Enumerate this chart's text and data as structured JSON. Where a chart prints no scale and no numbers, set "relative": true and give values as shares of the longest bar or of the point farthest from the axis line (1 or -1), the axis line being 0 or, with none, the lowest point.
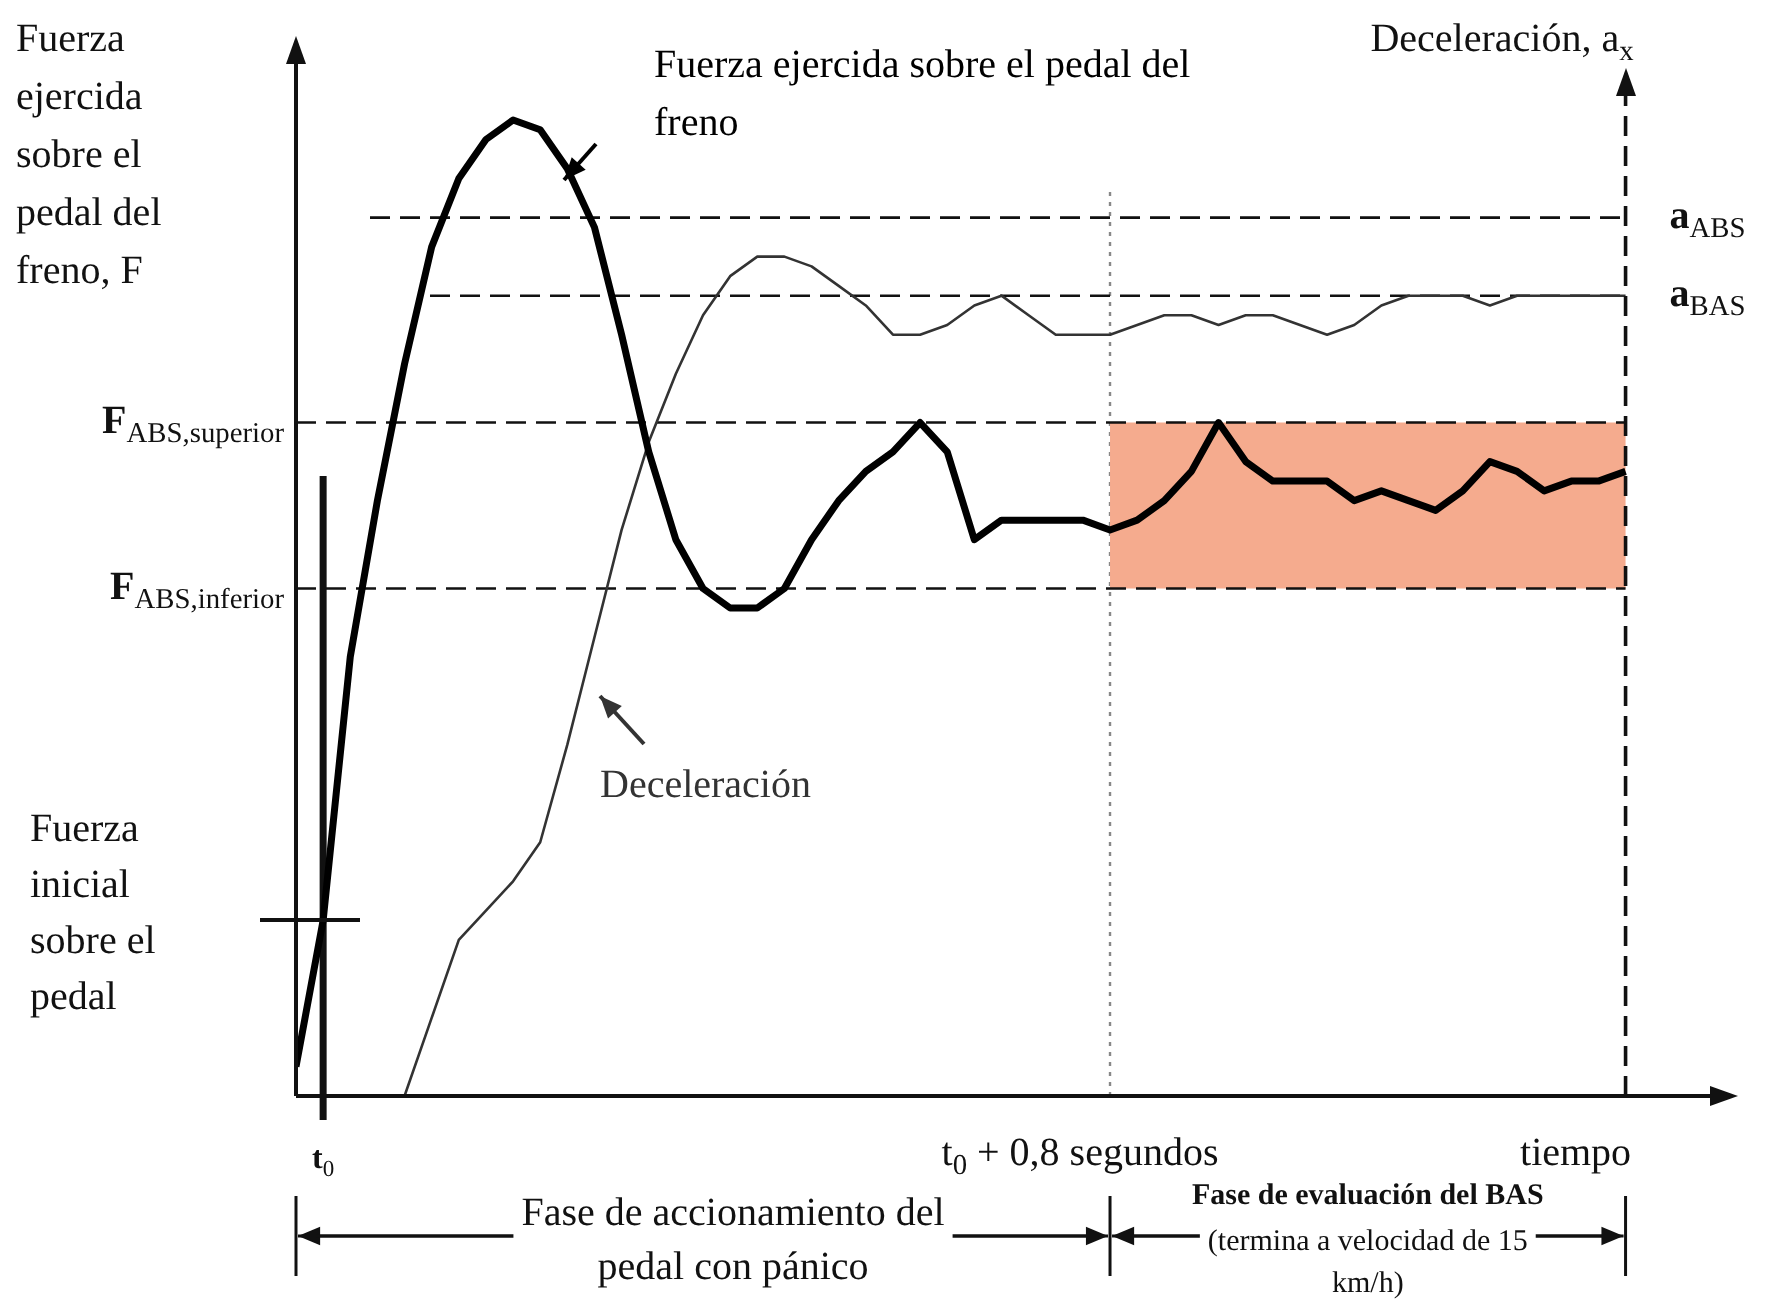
{
  "chart_data": {
    "type": "line",
    "relative": true,
    "marker": "none",
    "ylabel": "Fuerza ejercida sobre el pedal del freno, F",
    "y2label": "Deceleración, a$_{x}$",
    "xlabel": "tiempo",
    "categories": [
      null,
      null,
      null,
      null,
      null,
      null,
      null,
      null,
      null,
      null,
      null,
      null,
      null,
      null,
      null,
      null,
      null,
      null,
      null,
      null,
      null,
      null,
      null,
      null,
      null,
      null,
      null,
      null,
      null,
      null,
      null,
      null,
      null,
      null,
      null,
      null,
      null,
      null,
      null,
      null,
      null,
      null,
      null,
      null,
      null,
      null,
      null,
      null,
      null,
      null
    ],
    "series": [
      {
        "name": "Fuerza ejercida sobre el pedal del freno",
        "color": "#000000",
        "values": [
          0.03,
          0.18,
          0.45,
          0.61,
          0.75,
          0.87,
          0.94,
          0.98,
          1,
          0.99,
          0.95,
          0.89,
          0.78,
          0.66,
          0.57,
          0.52,
          0.5,
          0.5,
          0.52,
          0.57,
          0.61,
          0.64,
          0.66,
          0.69,
          0.66,
          0.57,
          0.59,
          0.59,
          0.59,
          0.59,
          0.58,
          0.59,
          0.61,
          0.64,
          0.69,
          0.65,
          0.63,
          0.63,
          0.63,
          0.61,
          0.62,
          0.61,
          0.6,
          0.62,
          0.65,
          0.64,
          0.62,
          0.63,
          0.63,
          0.64
        ]
      },
      {
        "name": "Deceleración",
        "color": "#333333",
        "values": [
          null,
          null,
          null,
          null,
          0,
          0.08,
          0.16,
          0.19,
          0.22,
          0.26,
          0.36,
          0.47,
          0.58,
          0.67,
          0.74,
          0.8,
          0.84,
          0.86,
          0.86,
          0.85,
          0.83,
          0.81,
          0.78,
          0.78,
          0.79,
          0.81,
          0.82,
          0.8,
          0.78,
          0.78,
          0.78,
          0.79,
          0.8,
          0.8,
          0.79,
          0.8,
          0.8,
          0.79,
          0.78,
          0.79,
          0.81,
          0.82,
          0.82,
          0.82,
          0.81,
          0.82,
          0.82,
          0.82,
          0.82,
          0.82
        ]
      }
    ],
    "ref_lines": [
      {
        "axis": "y",
        "value": 0.9,
        "label": "a$_{ABS}$",
        "line_style": "dashed"
      },
      {
        "axis": "y",
        "value": 0.82,
        "label": "a$_{BAS}$",
        "line_style": "dashed"
      },
      {
        "axis": "y",
        "value": 0.69,
        "label": "F$_{ABS,superior}$",
        "line_style": "dashed"
      },
      {
        "axis": "y",
        "value": 0.52,
        "label": "F$_{ABS,inferior}$",
        "line_style": "dashed"
      }
    ],
    "bands": [
      {
        "axis": "y",
        "from": 0.52,
        "to": 0.69,
        "color": "#f5ab8e"
      }
    ],
    "annotations": [
      "Fase de accionamiento del pedal con pánico",
      "Fase de evaluación del BAS",
      "(termina a velocidad de 15 km/h)",
      "t$_{0}$",
      "t$_{0}$ + 0,8 segundos",
      "Fuerza inicial sobre el pedal"
    ]
  }
}
